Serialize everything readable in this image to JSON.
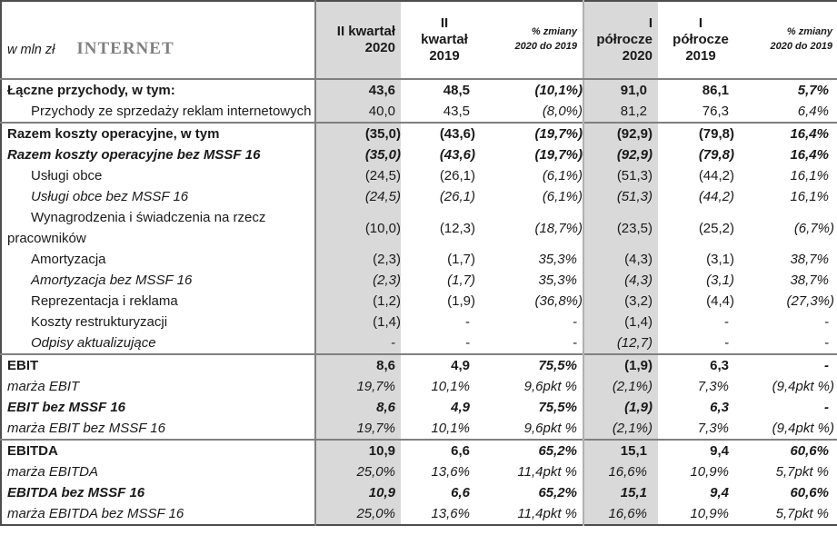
{
  "title_block": {
    "unit": "w mln zł",
    "segment": "INTERNET"
  },
  "columns": [
    {
      "label": "II kwartał\n2020",
      "shaded": true,
      "small": false
    },
    {
      "label": "II\nkwartał\n2019",
      "shaded": false,
      "small": false
    },
    {
      "label": "% zmiany\n2020 do 2019",
      "shaded": false,
      "small": true
    },
    {
      "label": "I\npółrocze\n2020",
      "shaded": true,
      "small": false
    },
    {
      "label": "I\npółrocze\n2019",
      "shaded": false,
      "small": false
    },
    {
      "label": "% zmiany\n2020 do 2019",
      "shaded": false,
      "small": true
    }
  ],
  "rows": [
    {
      "label": "Łączne przychody, w tym:",
      "style": "bold",
      "indent": false,
      "separator_above": false,
      "values": [
        "43,6",
        "48,5",
        "(10,1%)",
        "91,0",
        "86,1",
        "5,7%"
      ]
    },
    {
      "label": "Przychody ze sprzedaży reklam internetowych",
      "style": "normal",
      "indent": true,
      "separator_above": false,
      "values": [
        "40,0",
        "43,5",
        "(8,0%)",
        "81,2",
        "76,3",
        "6,4%"
      ]
    },
    {
      "label": "Razem koszty operacyjne, w tym",
      "style": "bold",
      "indent": false,
      "separator_above": true,
      "values": [
        "(35,0)",
        "(43,6)",
        "(19,7%)",
        "(92,9)",
        "(79,8)",
        "16,4%"
      ]
    },
    {
      "label": "Razem koszty operacyjne bez MSSF 16",
      "style": "bold-italic",
      "indent": false,
      "separator_above": false,
      "values": [
        "(35,0)",
        "(43,6)",
        "(19,7%)",
        "(92,9)",
        "(79,8)",
        "16,4%"
      ]
    },
    {
      "label": "Usługi obce",
      "style": "normal",
      "indent": true,
      "separator_above": false,
      "values": [
        "(24,5)",
        "(26,1)",
        "(6,1%)",
        "(51,3)",
        "(44,2)",
        "16,1%"
      ]
    },
    {
      "label": "Usługi obce bez MSSF 16",
      "style": "italic",
      "indent": true,
      "separator_above": false,
      "values": [
        "(24,5)",
        "(26,1)",
        "(6,1%)",
        "(51,3)",
        "(44,2)",
        "16,1%"
      ]
    },
    {
      "label": "Wynagrodzenia i świadczenia na rzecz pracowników",
      "style": "normal",
      "indent": true,
      "separator_above": false,
      "values": [
        "(10,0)",
        "(12,3)",
        "(18,7%)",
        "(23,5)",
        "(25,2)",
        "(6,7%)"
      ]
    },
    {
      "label": "Amortyzacja",
      "style": "normal",
      "indent": true,
      "separator_above": false,
      "values": [
        "(2,3)",
        "(1,7)",
        "35,3%",
        "(4,3)",
        "(3,1)",
        "38,7%"
      ]
    },
    {
      "label": "Amortyzacja bez MSSF 16",
      "style": "italic",
      "indent": true,
      "separator_above": false,
      "values": [
        "(2,3)",
        "(1,7)",
        "35,3%",
        "(4,3)",
        "(3,1)",
        "38,7%"
      ]
    },
    {
      "label": "Reprezentacja i reklama",
      "style": "normal",
      "indent": true,
      "separator_above": false,
      "values": [
        "(1,2)",
        "(1,9)",
        "(36,8%)",
        "(3,2)",
        "(4,4)",
        "(27,3%)"
      ]
    },
    {
      "label": "Koszty restrukturyzacji",
      "style": "normal",
      "indent": true,
      "separator_above": false,
      "values": [
        "(1,4)",
        "-",
        "-",
        "(1,4)",
        "-",
        "-"
      ]
    },
    {
      "label": "Odpisy aktualizujące",
      "style": "italic",
      "indent": true,
      "separator_above": false,
      "values": [
        "-",
        "-",
        "-",
        "(12,7)",
        "-",
        "-"
      ]
    },
    {
      "label": "EBIT",
      "style": "bold",
      "indent": false,
      "separator_above": true,
      "values": [
        "8,6",
        "4,9",
        "75,5%",
        "(1,9)",
        "6,3",
        "-"
      ]
    },
    {
      "label": "marża EBIT",
      "style": "italic",
      "indent": false,
      "separator_above": false,
      "values": [
        "19,7%",
        "10,1%",
        "9,6pkt %",
        "(2,1%)",
        "7,3%",
        "(9,4pkt %)"
      ]
    },
    {
      "label": "EBIT bez MSSF 16",
      "style": "bold-italic",
      "indent": false,
      "separator_above": false,
      "values": [
        "8,6",
        "4,9",
        "75,5%",
        "(1,9)",
        "6,3",
        "-"
      ]
    },
    {
      "label": "marża EBIT bez MSSF 16",
      "style": "italic",
      "indent": false,
      "separator_above": false,
      "values": [
        "19,7%",
        "10,1%",
        "9,6pkt %",
        "(2,1%)",
        "7,3%",
        "(9,4pkt %)"
      ]
    },
    {
      "label": "EBITDA",
      "style": "bold",
      "indent": false,
      "separator_above": true,
      "values": [
        "10,9",
        "6,6",
        "65,2%",
        "15,1",
        "9,4",
        "60,6%"
      ]
    },
    {
      "label": "marża EBITDA",
      "style": "italic",
      "indent": false,
      "separator_above": false,
      "values": [
        "25,0%",
        "13,6%",
        "11,4pkt %",
        "16,6%",
        "10,9%",
        "5,7pkt %"
      ]
    },
    {
      "label": "EBITDA bez MSSF 16",
      "style": "bold-italic",
      "indent": false,
      "separator_above": false,
      "values": [
        "10,9",
        "6,6",
        "65,2%",
        "15,1",
        "9,4",
        "60,6%"
      ]
    },
    {
      "label": "marża EBITDA bez MSSF 16",
      "style": "italic",
      "indent": false,
      "separator_above": false,
      "values": [
        "25,0%",
        "13,6%",
        "11,4pkt %",
        "16,6%",
        "10,9%",
        "5,7pkt %"
      ]
    }
  ]
}
